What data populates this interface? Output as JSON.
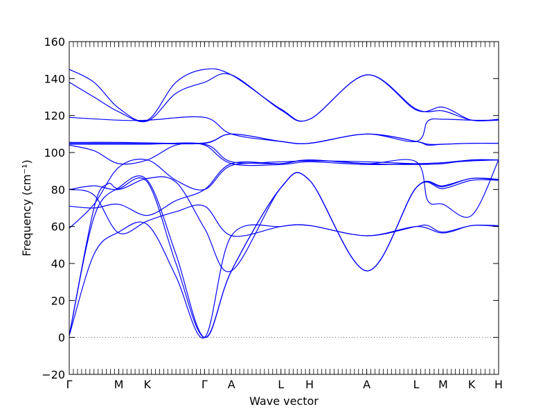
{
  "chart_data": {
    "type": "line",
    "title": "",
    "xlabel": "Wave vector",
    "ylabel": "Frequency (cm⁻¹)",
    "ylim": [
      -20,
      160
    ],
    "yticks": [
      -20,
      0,
      20,
      40,
      60,
      80,
      100,
      120,
      140,
      160
    ],
    "grid": false,
    "legend": "none",
    "line_color": "#0000ff",
    "zero_line": {
      "y": 0,
      "style": "dotted",
      "color": "#555555"
    },
    "kpoints": [
      {
        "label": "Γ",
        "x": 0.0
      },
      {
        "label": "M",
        "x": 0.58
      },
      {
        "label": "K",
        "x": 0.915
      },
      {
        "label": "Γ",
        "x": 1.585
      },
      {
        "label": "A",
        "x": 1.9
      },
      {
        "label": "L",
        "x": 2.48
      },
      {
        "label": "H",
        "x": 2.815
      },
      {
        "label": "A",
        "x": 3.485
      },
      {
        "label": "L",
        "x": 4.065
      },
      {
        "label": "M",
        "x": 4.38
      },
      {
        "label": "K",
        "x": 4.715
      },
      {
        "label": "H",
        "x": 5.03
      }
    ],
    "xlim": [
      0.0,
      5.03
    ],
    "series": [
      {
        "points": [
          [
            0,
            1
          ],
          [
            0.29,
            45
          ],
          [
            0.58,
            57
          ],
          [
            0.915,
            61
          ],
          [
            1.25,
            33
          ],
          [
            1.585,
            0
          ],
          [
            1.9,
            55
          ],
          [
            2.48,
            60
          ],
          [
            2.815,
            60.5
          ],
          [
            3.485,
            55
          ],
          [
            4.065,
            60
          ],
          [
            4.2,
            60.5
          ],
          [
            4.38,
            57
          ],
          [
            4.715,
            60.5
          ],
          [
            5.03,
            60.5
          ]
        ]
      },
      {
        "points": [
          [
            0,
            1
          ],
          [
            0.29,
            65
          ],
          [
            0.58,
            81
          ],
          [
            0.915,
            85
          ],
          [
            1.25,
            45
          ],
          [
            1.585,
            0
          ],
          [
            1.9,
            36
          ],
          [
            2.48,
            81
          ],
          [
            2.815,
            85
          ],
          [
            3.485,
            36
          ],
          [
            4.065,
            81
          ],
          [
            4.38,
            80.5
          ],
          [
            4.715,
            85
          ],
          [
            5.03,
            85
          ]
        ]
      },
      {
        "points": [
          [
            0,
            1
          ],
          [
            0.29,
            70
          ],
          [
            0.45,
            83
          ],
          [
            0.58,
            80.5
          ],
          [
            0.915,
            84
          ],
          [
            1.25,
            40
          ],
          [
            1.585,
            0
          ],
          [
            1.9,
            36
          ],
          [
            2.48,
            81
          ],
          [
            2.815,
            85
          ],
          [
            3.485,
            36
          ],
          [
            4.065,
            81
          ],
          [
            4.38,
            81.5
          ],
          [
            4.715,
            86
          ],
          [
            5.03,
            85
          ]
        ]
      },
      {
        "points": [
          [
            0,
            59
          ],
          [
            0.29,
            72
          ],
          [
            0.58,
            92
          ],
          [
            0.915,
            96
          ],
          [
            1.25,
            85
          ],
          [
            1.585,
            80
          ],
          [
            1.9,
            93
          ],
          [
            2.48,
            94
          ],
          [
            2.815,
            96
          ],
          [
            3.485,
            94
          ],
          [
            4.065,
            93.5
          ],
          [
            4.38,
            94
          ],
          [
            4.715,
            96
          ],
          [
            5.03,
            96
          ]
        ]
      },
      {
        "points": [
          [
            0,
            80
          ],
          [
            0.29,
            77
          ],
          [
            0.58,
            56.5
          ],
          [
            0.915,
            63
          ],
          [
            1.25,
            68
          ],
          [
            1.585,
            71
          ],
          [
            1.9,
            55
          ],
          [
            2.48,
            60
          ],
          [
            2.815,
            60.5
          ],
          [
            3.485,
            55
          ],
          [
            4.065,
            60
          ],
          [
            4.38,
            56.5
          ],
          [
            4.715,
            60.5
          ],
          [
            5.03,
            60
          ]
        ]
      },
      {
        "points": [
          [
            0,
            71
          ],
          [
            0.29,
            70
          ],
          [
            0.58,
            72
          ],
          [
            0.915,
            66
          ],
          [
            1.25,
            74
          ],
          [
            1.585,
            80
          ],
          [
            1.9,
            94
          ],
          [
            2.48,
            94
          ],
          [
            2.815,
            96
          ],
          [
            3.485,
            94
          ],
          [
            4.065,
            95
          ],
          [
            4.2,
            74
          ],
          [
            4.38,
            72
          ],
          [
            4.715,
            66
          ],
          [
            5.03,
            96
          ]
        ]
      },
      {
        "points": [
          [
            0,
            80
          ],
          [
            0.29,
            82
          ],
          [
            0.58,
            80
          ],
          [
            0.915,
            86
          ],
          [
            1.25,
            84
          ],
          [
            1.585,
            59
          ],
          [
            1.9,
            36
          ],
          [
            2.48,
            81
          ],
          [
            2.815,
            85
          ],
          [
            3.485,
            36
          ],
          [
            4.065,
            81
          ],
          [
            4.38,
            82
          ],
          [
            4.715,
            86
          ],
          [
            5.03,
            85.5
          ]
        ]
      },
      {
        "points": [
          [
            0,
            104
          ],
          [
            0.29,
            101
          ],
          [
            0.58,
            94
          ],
          [
            0.915,
            96
          ],
          [
            1.25,
            104
          ],
          [
            1.585,
            104
          ],
          [
            1.9,
            94
          ],
          [
            2.48,
            93.5
          ],
          [
            2.815,
            95
          ],
          [
            3.485,
            93.5
          ],
          [
            4.065,
            94
          ],
          [
            4.38,
            94.5
          ],
          [
            4.715,
            96
          ],
          [
            5.03,
            96
          ]
        ]
      },
      {
        "points": [
          [
            0,
            104.5
          ],
          [
            0.58,
            104.5
          ],
          [
            0.915,
            104.5
          ],
          [
            1.585,
            104.5
          ],
          [
            1.9,
            95
          ],
          [
            2.48,
            95
          ],
          [
            2.815,
            95.5
          ],
          [
            3.485,
            95
          ],
          [
            4.065,
            94
          ],
          [
            4.38,
            94.5
          ],
          [
            4.715,
            95.5
          ],
          [
            5.03,
            96
          ]
        ]
      },
      {
        "points": [
          [
            0,
            105
          ],
          [
            0.58,
            105
          ],
          [
            0.915,
            105
          ],
          [
            1.585,
            105
          ],
          [
            1.9,
            110
          ],
          [
            2.48,
            106
          ],
          [
            2.815,
            105
          ],
          [
            3.485,
            110
          ],
          [
            4.065,
            106
          ],
          [
            4.2,
            117
          ],
          [
            4.38,
            118
          ],
          [
            4.715,
            117.5
          ],
          [
            5.03,
            117.5
          ]
        ]
      },
      {
        "points": [
          [
            0,
            105.5
          ],
          [
            0.58,
            105.5
          ],
          [
            0.915,
            105.2
          ],
          [
            1.585,
            105.2
          ],
          [
            1.9,
            110
          ],
          [
            2.48,
            106
          ],
          [
            2.815,
            105
          ],
          [
            3.485,
            110
          ],
          [
            4.065,
            106
          ],
          [
            4.2,
            104
          ],
          [
            4.38,
            104.5
          ],
          [
            4.715,
            105
          ],
          [
            5.03,
            105
          ]
        ]
      },
      {
        "points": [
          [
            0,
            119
          ],
          [
            0.58,
            117.5
          ],
          [
            0.915,
            117.5
          ],
          [
            1.585,
            119
          ],
          [
            1.9,
            110
          ],
          [
            2.48,
            106
          ],
          [
            2.815,
            105
          ],
          [
            3.485,
            110
          ],
          [
            4.065,
            106
          ],
          [
            4.2,
            104.5
          ],
          [
            4.38,
            104.5
          ],
          [
            4.715,
            105
          ],
          [
            5.03,
            105
          ]
        ]
      },
      {
        "points": [
          [
            0,
            138
          ],
          [
            0.29,
            130
          ],
          [
            0.58,
            122
          ],
          [
            0.915,
            117
          ],
          [
            1.25,
            132
          ],
          [
            1.585,
            138
          ],
          [
            1.9,
            142
          ],
          [
            2.48,
            123
          ],
          [
            2.815,
            118
          ],
          [
            3.485,
            142
          ],
          [
            4.065,
            123.5
          ],
          [
            4.38,
            122.5
          ],
          [
            4.715,
            117.5
          ],
          [
            5.03,
            117.5
          ]
        ]
      },
      {
        "points": [
          [
            0,
            145
          ],
          [
            0.29,
            138
          ],
          [
            0.58,
            124
          ],
          [
            0.915,
            117.5
          ],
          [
            1.25,
            138
          ],
          [
            1.585,
            145
          ],
          [
            1.9,
            142
          ],
          [
            2.48,
            123.5
          ],
          [
            2.815,
            118
          ],
          [
            3.485,
            142
          ],
          [
            4.065,
            123
          ],
          [
            4.38,
            124.5
          ],
          [
            4.715,
            117.5
          ],
          [
            5.03,
            118
          ]
        ]
      }
    ]
  }
}
